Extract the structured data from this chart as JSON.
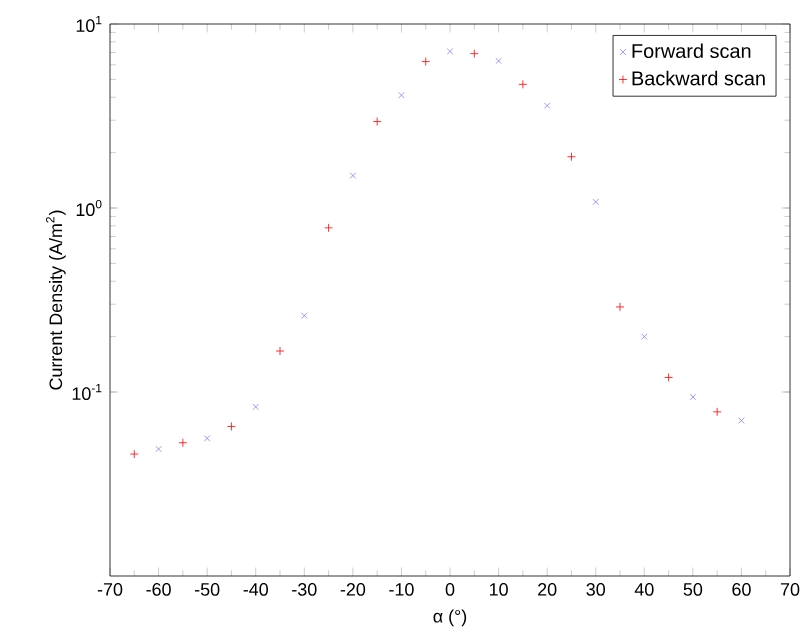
{
  "chart_data": {
    "type": "scatter",
    "xlabel": "α (°)",
    "ylabel": "Current Density (A/m$^{2}$)",
    "log": "y",
    "grid": false,
    "legend": "top right",
    "xlim": [
      -70,
      70
    ],
    "xticks": [
      -70,
      -60,
      -50,
      -40,
      -30,
      -20,
      -10,
      0,
      10,
      20,
      30,
      40,
      50,
      60,
      70
    ],
    "ylim": [
      0.01,
      10
    ],
    "yticks": [
      {
        "value": 0.1,
        "label": "10$^{-1}$"
      },
      {
        "value": 1,
        "label": "10$^{0}$"
      },
      {
        "value": 10,
        "label": "10$^{1}$"
      }
    ],
    "series": [
      {
        "name": "Forward scan",
        "color": "#7f7fff",
        "marker": "x",
        "x": [
          -60,
          -50,
          -40,
          -30,
          -20,
          -10,
          0,
          10,
          20,
          30,
          40,
          50,
          60
        ],
        "values": [
          0.049,
          0.056,
          0.083,
          0.26,
          1.5,
          4.1,
          7.1,
          6.3,
          3.6,
          1.08,
          0.2,
          0.094,
          0.07
        ]
      },
      {
        "name": "Backward scan",
        "color": "#ff0000",
        "marker": "cross",
        "x": [
          -65,
          -55,
          -45,
          -35,
          -25,
          -15,
          -5,
          5,
          15,
          25,
          35,
          45,
          55
        ],
        "values": [
          0.046,
          0.053,
          0.065,
          0.167,
          0.78,
          2.95,
          6.25,
          6.9,
          4.7,
          1.9,
          0.29,
          0.12,
          0.078
        ]
      }
    ]
  }
}
